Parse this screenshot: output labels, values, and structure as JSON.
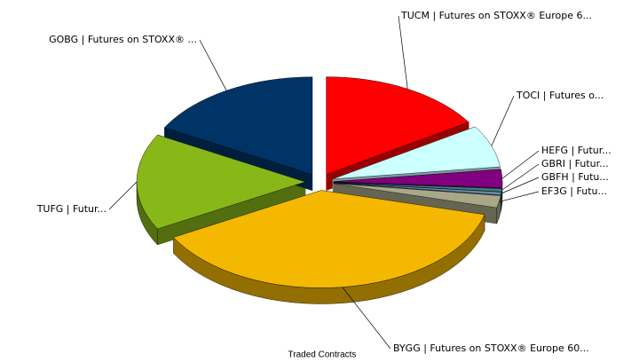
{
  "chart_data": {
    "type": "pie",
    "title": "Traded Contracts",
    "categories": [
      "TUCM | Futures on STOXX® Europe 6...",
      "TOCI | Futures o...",
      "HEFG | Futur...",
      "GBRI | Futur...",
      "GBFH | Futu...",
      "EF3G | Futu...",
      "BYGG | Futures on STOXX® Europe 60...",
      "TUFG | Futur...",
      "GOBG | Futures on STOXX® ..."
    ],
    "values": [
      16,
      7,
      3,
      0.5,
      0.5,
      2,
      38,
      16,
      17
    ],
    "colors": [
      "#ff0000",
      "#ccffff",
      "#800080",
      "#408080",
      "#6688aa",
      "#a8a888",
      "#f5b800",
      "#88b818",
      "#003366"
    ]
  }
}
